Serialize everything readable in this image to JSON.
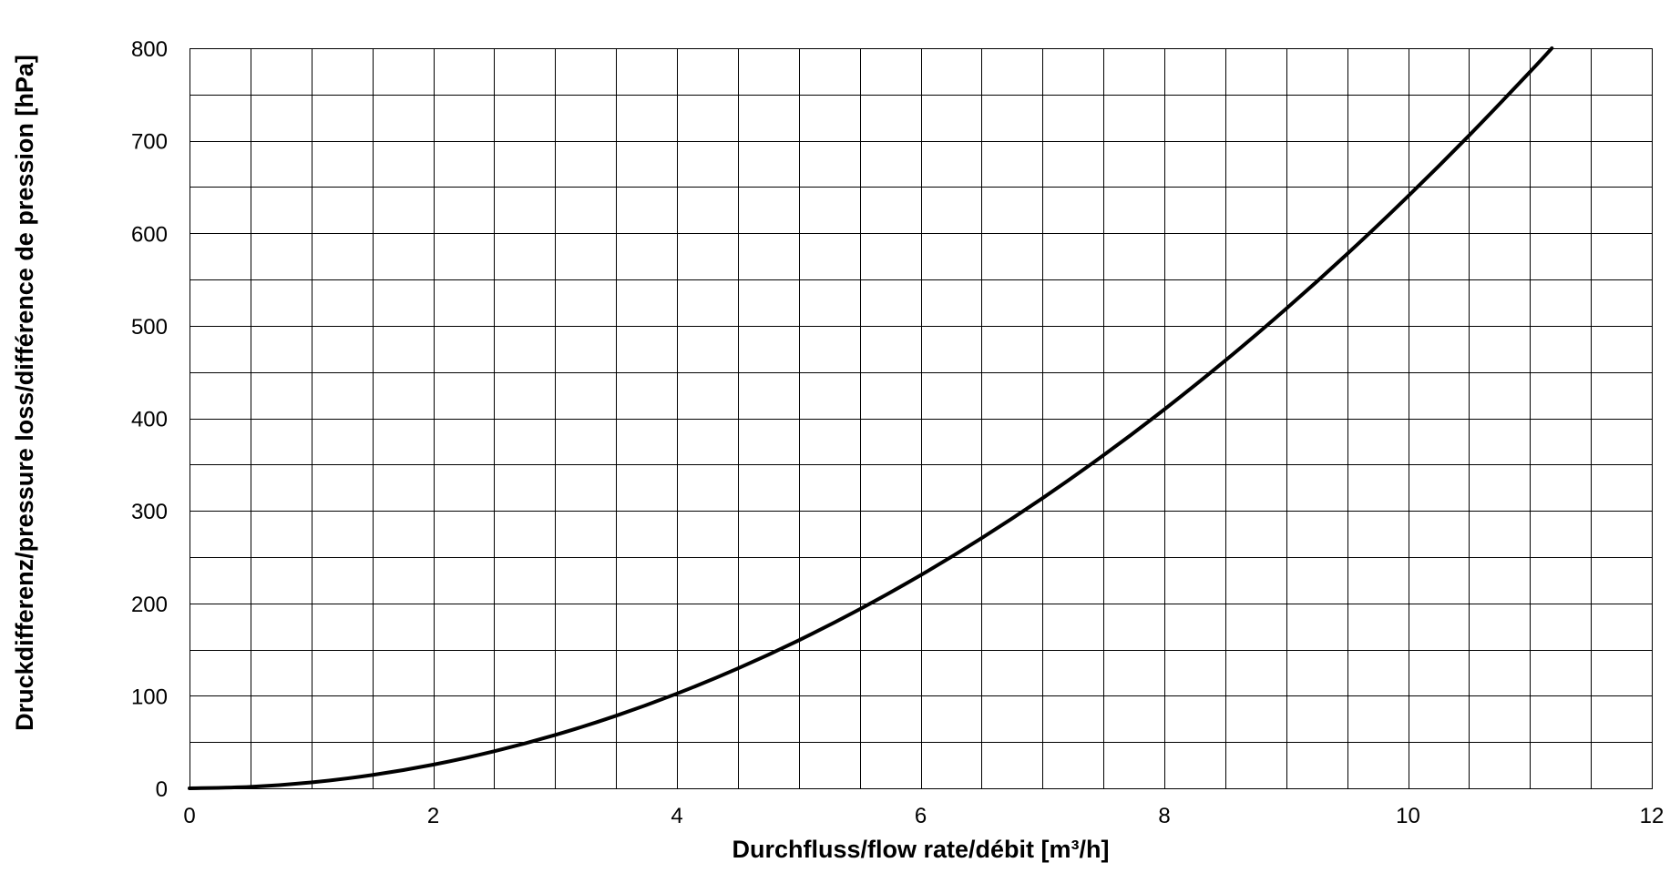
{
  "chart_data": {
    "type": "line",
    "title": "",
    "xlabel": "Durchfluss/flow rate/débit [m³/h]",
    "ylabel": "Druckdifferenz/pressure loss/différence de pression [hPa]",
    "xlim": [
      0,
      12
    ],
    "ylim": [
      0,
      800
    ],
    "x_ticks": [
      0,
      2,
      4,
      6,
      8,
      10,
      12
    ],
    "y_ticks": [
      0,
      100,
      200,
      300,
      400,
      500,
      600,
      700,
      800
    ],
    "x_tick_labels": [
      "0",
      "2",
      "4",
      "6",
      "8",
      "10",
      "12"
    ],
    "y_tick_labels": [
      "0",
      "100",
      "200",
      "300",
      "400",
      "500",
      "600",
      "700",
      "800"
    ],
    "x_grid_step": 0.5,
    "y_grid_step": 50,
    "grid": true,
    "legend": "none",
    "line_color": "#000000",
    "series": [
      {
        "x": [
          0,
          0.5,
          1,
          1.5,
          2,
          2.5,
          3,
          3.5,
          4,
          4.5,
          5,
          5.5,
          6,
          6.5,
          7,
          7.5,
          8,
          8.5,
          9,
          9.5,
          10,
          10.5,
          11,
          11.18
        ],
        "values": [
          0,
          1.6,
          6.4,
          14.4,
          25.6,
          40,
          57.6,
          78.4,
          102.4,
          129.6,
          160,
          193.6,
          230.4,
          270.4,
          313.6,
          360,
          409.6,
          462.4,
          518.4,
          577.6,
          640,
          705.6,
          774.4,
          800
        ]
      }
    ]
  }
}
